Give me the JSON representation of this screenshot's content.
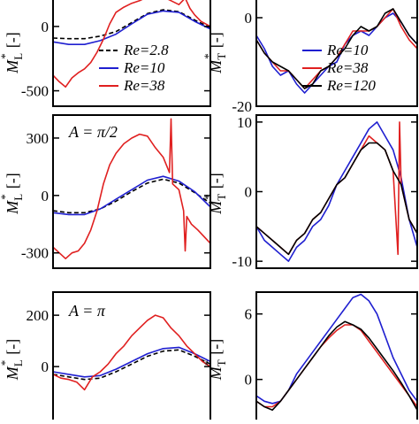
{
  "chart_data": [
    {
      "type": "line",
      "panel": "top-left",
      "annotation": "",
      "ylabel_main": "M",
      "ylabel_sub": "L",
      "ylabel_sup": "*",
      "ylabel_unit": "[-]",
      "ylim": [
        -620,
        240
      ],
      "yticks": [
        {
          "v": 0,
          "label": "0"
        },
        {
          "v": -500,
          "label": "-500"
        }
      ],
      "xlim": [
        0,
        1
      ],
      "legend": {
        "position": "bottom",
        "entries": [
          {
            "label": "Re=2.8",
            "series": "Re=2.8"
          },
          {
            "label": "Re=10",
            "series": "Re=10"
          },
          {
            "label": "Re=38",
            "series": "Re=38"
          }
        ]
      },
      "series": [
        {
          "name": "Re=2.8",
          "color": "#000000",
          "dashed": true,
          "x": [
            0,
            0.1,
            0.2,
            0.3,
            0.4,
            0.5,
            0.6,
            0.7,
            0.8,
            0.9,
            1
          ],
          "y": [
            -90,
            -95,
            -95,
            -75,
            -40,
            30,
            100,
            130,
            115,
            50,
            -10
          ]
        },
        {
          "name": "Re=10",
          "color": "#1f1fd0",
          "dashed": false,
          "x": [
            0,
            0.1,
            0.2,
            0.3,
            0.4,
            0.5,
            0.6,
            0.7,
            0.8,
            0.9,
            1
          ],
          "y": [
            -120,
            -140,
            -140,
            -110,
            -60,
            20,
            95,
            120,
            110,
            40,
            -20
          ]
        },
        {
          "name": "Re=38",
          "color": "#e02020",
          "dashed": false,
          "x": [
            0,
            0.04,
            0.08,
            0.12,
            0.16,
            0.2,
            0.24,
            0.28,
            0.32,
            0.36,
            0.4,
            0.45,
            0.5,
            0.55,
            0.6,
            0.65,
            0.7,
            0.75,
            0.8,
            0.84,
            0.87,
            0.9,
            0.94,
            1
          ],
          "y": [
            -380,
            -430,
            -470,
            -400,
            -360,
            -330,
            -280,
            -200,
            -100,
            20,
            110,
            150,
            180,
            200,
            230,
            215,
            230,
            200,
            170,
            220,
            140,
            90,
            40,
            0
          ]
        }
      ]
    },
    {
      "type": "line",
      "panel": "top-right",
      "annotation": "",
      "ylabel_main": "M",
      "ylabel_sub": "T",
      "ylabel_sup": "*",
      "ylabel_unit": "[-]",
      "ylim": [
        -20,
        5
      ],
      "yticks": [
        {
          "v": 0,
          "label": "0"
        },
        {
          "v": -20,
          "label": "-20"
        }
      ],
      "xlim": [
        0,
        1
      ],
      "legend": {
        "position": "bottom-right",
        "entries": [
          {
            "label": "Re=10",
            "series": "Re=10"
          },
          {
            "label": "Re=38",
            "series": "Re=38"
          },
          {
            "label": "Re=120",
            "series": "Re=120"
          }
        ]
      },
      "series": [
        {
          "name": "Re=10",
          "color": "#1f1fd0",
          "dashed": false,
          "x": [
            0,
            0.05,
            0.1,
            0.15,
            0.2,
            0.25,
            0.3,
            0.35,
            0.4,
            0.45,
            0.5,
            0.55,
            0.6,
            0.65,
            0.7,
            0.75,
            0.8,
            0.85,
            0.9,
            0.95,
            1
          ],
          "y": [
            -4,
            -7,
            -11,
            -13,
            -12,
            -15,
            -17,
            -15,
            -13,
            -11,
            -10,
            -6,
            -4,
            -3,
            -4,
            -2,
            0,
            1,
            -1,
            -4,
            -6
          ]
        },
        {
          "name": "Re=38",
          "color": "#e02020",
          "dashed": false,
          "x": [
            0,
            0.05,
            0.1,
            0.15,
            0.2,
            0.25,
            0.3,
            0.35,
            0.4,
            0.45,
            0.5,
            0.55,
            0.6,
            0.65,
            0.7,
            0.75,
            0.8,
            0.85,
            0.9,
            0.95,
            1
          ],
          "y": [
            -5,
            -8,
            -10,
            -12,
            -12,
            -14,
            -16,
            -14,
            -12,
            -11,
            -9,
            -6,
            -3,
            -3,
            -3,
            -2,
            0,
            2,
            -2,
            -5,
            -7
          ]
        },
        {
          "name": "Re=120",
          "color": "#000000",
          "dashed": false,
          "x": [
            0,
            0.05,
            0.1,
            0.15,
            0.2,
            0.25,
            0.3,
            0.35,
            0.4,
            0.45,
            0.5,
            0.55,
            0.6,
            0.65,
            0.7,
            0.75,
            0.8,
            0.85,
            0.9,
            0.95,
            1
          ],
          "y": [
            -5,
            -8,
            -10,
            -11,
            -12,
            -14,
            -16,
            -15,
            -12,
            -11,
            -9,
            -7,
            -4,
            -2,
            -3,
            -2,
            1,
            2,
            -1,
            -4,
            -6
          ]
        }
      ]
    },
    {
      "type": "line",
      "panel": "middle-left",
      "annotation": "A = π/2",
      "ylabel_main": "M",
      "ylabel_sub": "L",
      "ylabel_sup": "*",
      "ylabel_unit": "[-]",
      "ylim": [
        -380,
        420
      ],
      "yticks": [
        {
          "v": 300,
          "label": "300"
        },
        {
          "v": 0,
          "label": "0"
        },
        {
          "v": -300,
          "label": "-300"
        }
      ],
      "xlim": [
        0,
        1
      ],
      "legend": null,
      "series": [
        {
          "name": "Re=2.8",
          "color": "#000000",
          "dashed": true,
          "x": [
            0,
            0.1,
            0.2,
            0.3,
            0.4,
            0.5,
            0.6,
            0.7,
            0.8,
            0.9,
            1
          ],
          "y": [
            -80,
            -90,
            -90,
            -70,
            -30,
            20,
            65,
            85,
            65,
            15,
            -40
          ]
        },
        {
          "name": "Re=10",
          "color": "#1f1fd0",
          "dashed": false,
          "x": [
            0,
            0.1,
            0.2,
            0.3,
            0.4,
            0.5,
            0.6,
            0.7,
            0.8,
            0.9,
            1
          ],
          "y": [
            -90,
            -100,
            -100,
            -70,
            -20,
            30,
            80,
            100,
            75,
            20,
            -60
          ]
        },
        {
          "name": "Re=38",
          "color": "#e02020",
          "dashed": false,
          "x": [
            0,
            0.04,
            0.08,
            0.12,
            0.16,
            0.2,
            0.24,
            0.28,
            0.32,
            0.36,
            0.4,
            0.45,
            0.5,
            0.55,
            0.6,
            0.65,
            0.7,
            0.74,
            0.75,
            0.76,
            0.8,
            0.83,
            0.84,
            0.85,
            0.88,
            0.92,
            1
          ],
          "y": [
            -270,
            -300,
            -330,
            -300,
            -290,
            -250,
            -180,
            -80,
            60,
            160,
            220,
            270,
            300,
            320,
            310,
            250,
            200,
            120,
            400,
            60,
            30,
            -80,
            -290,
            -110,
            -150,
            -180,
            -250
          ]
        }
      ]
    },
    {
      "type": "line",
      "panel": "middle-right",
      "annotation": "",
      "ylabel_main": "M",
      "ylabel_sub": "T",
      "ylabel_sup": "*",
      "ylabel_unit": "[-]",
      "ylim": [
        -11,
        11
      ],
      "yticks": [
        {
          "v": 10,
          "label": "10"
        },
        {
          "v": 0,
          "label": "0"
        },
        {
          "v": -10,
          "label": "-10"
        }
      ],
      "xlim": [
        0,
        1
      ],
      "legend": null,
      "series": [
        {
          "name": "Re=10",
          "color": "#1f1fd0",
          "dashed": false,
          "x": [
            0,
            0.05,
            0.1,
            0.15,
            0.2,
            0.25,
            0.3,
            0.35,
            0.4,
            0.45,
            0.5,
            0.55,
            0.6,
            0.65,
            0.7,
            0.75,
            0.8,
            0.85,
            0.9,
            0.95,
            1
          ],
          "y": [
            -5,
            -7,
            -8,
            -9,
            -10,
            -8,
            -7,
            -5,
            -4,
            -2,
            1,
            3,
            5,
            7,
            9,
            10,
            8,
            6,
            2,
            -4,
            -8
          ]
        },
        {
          "name": "Re=38",
          "color": "#e02020",
          "dashed": false,
          "x": [
            0,
            0.05,
            0.1,
            0.15,
            0.2,
            0.25,
            0.3,
            0.35,
            0.4,
            0.45,
            0.5,
            0.55,
            0.6,
            0.65,
            0.7,
            0.75,
            0.8,
            0.85,
            0.88,
            0.89,
            0.9,
            0.95,
            1
          ],
          "y": [
            -5,
            -6,
            -7,
            -8,
            -9,
            -7,
            -6,
            -4,
            -3,
            -1,
            1,
            2,
            4,
            6,
            8,
            7,
            6,
            3,
            -9,
            10,
            1,
            -4,
            -6
          ]
        },
        {
          "name": "Re=120",
          "color": "#000000",
          "dashed": false,
          "x": [
            0,
            0.05,
            0.1,
            0.15,
            0.2,
            0.25,
            0.3,
            0.35,
            0.4,
            0.45,
            0.5,
            0.55,
            0.6,
            0.65,
            0.7,
            0.75,
            0.8,
            0.85,
            0.9,
            0.95,
            1
          ],
          "y": [
            -5,
            -6,
            -7,
            -8,
            -9,
            -7,
            -6,
            -4,
            -3,
            -1,
            1,
            2,
            4,
            6,
            7,
            7,
            6,
            3,
            1,
            -4,
            -6
          ]
        }
      ]
    },
    {
      "type": "line",
      "panel": "bottom-left",
      "annotation": "A = π",
      "ylabel_main": "M",
      "ylabel_sub": "L",
      "ylabel_sup": "*",
      "ylabel_unit": "[-]",
      "ylim": [
        -220,
        290
      ],
      "yticks": [
        {
          "v": 200,
          "label": "200"
        },
        {
          "v": 0,
          "label": "0"
        }
      ],
      "xlim": [
        0,
        1
      ],
      "legend": null,
      "series": [
        {
          "name": "Re=2.8",
          "color": "#000000",
          "dashed": true,
          "x": [
            0,
            0.1,
            0.2,
            0.3,
            0.4,
            0.5,
            0.6,
            0.7,
            0.8,
            0.9,
            1
          ],
          "y": [
            -30,
            -40,
            -50,
            -45,
            -20,
            10,
            40,
            60,
            65,
            40,
            10
          ]
        },
        {
          "name": "Re=10",
          "color": "#1f1fd0",
          "dashed": false,
          "x": [
            0,
            0.1,
            0.2,
            0.3,
            0.4,
            0.5,
            0.6,
            0.7,
            0.8,
            0.9,
            1
          ],
          "y": [
            -20,
            -30,
            -40,
            -35,
            -10,
            20,
            50,
            70,
            75,
            50,
            20
          ]
        },
        {
          "name": "Re=38",
          "color": "#e02020",
          "dashed": false,
          "x": [
            0,
            0.05,
            0.1,
            0.15,
            0.2,
            0.25,
            0.3,
            0.35,
            0.4,
            0.45,
            0.5,
            0.55,
            0.6,
            0.65,
            0.7,
            0.75,
            0.8,
            0.85,
            0.9,
            0.95,
            1
          ],
          "y": [
            -30,
            -45,
            -50,
            -60,
            -90,
            -40,
            -20,
            10,
            50,
            80,
            120,
            150,
            180,
            200,
            190,
            150,
            120,
            80,
            50,
            20,
            0
          ]
        }
      ]
    },
    {
      "type": "line",
      "panel": "bottom-right",
      "annotation": "",
      "ylabel_main": "M",
      "ylabel_sub": "T",
      "ylabel_sup": "*",
      "ylabel_unit": "[-]",
      "ylim": [
        -4,
        8
      ],
      "yticks": [
        {
          "v": 6,
          "label": "6"
        },
        {
          "v": 0,
          "label": "0"
        }
      ],
      "xlim": [
        0,
        1
      ],
      "legend": null,
      "series": [
        {
          "name": "Re=10",
          "color": "#1f1fd0",
          "dashed": false,
          "x": [
            0,
            0.05,
            0.1,
            0.15,
            0.2,
            0.25,
            0.3,
            0.35,
            0.4,
            0.45,
            0.5,
            0.55,
            0.6,
            0.65,
            0.7,
            0.75,
            0.8,
            0.85,
            0.9,
            0.95,
            1
          ],
          "y": [
            -1.5,
            -2,
            -2.2,
            -2,
            -1,
            0.5,
            1.5,
            2.5,
            3.5,
            4.5,
            5.5,
            6.5,
            7.5,
            7.8,
            7.2,
            6,
            4,
            2,
            0.5,
            -1,
            -2
          ]
        },
        {
          "name": "Re=38",
          "color": "#e02020",
          "dashed": false,
          "x": [
            0,
            0.05,
            0.1,
            0.15,
            0.2,
            0.25,
            0.3,
            0.35,
            0.4,
            0.45,
            0.5,
            0.55,
            0.6,
            0.65,
            0.7,
            0.75,
            0.8,
            0.85,
            0.9,
            0.95,
            1
          ],
          "y": [
            -2,
            -2.5,
            -2.5,
            -2,
            -1,
            0,
            1,
            2,
            3,
            3.8,
            4.5,
            5,
            5,
            4.5,
            3.5,
            2.5,
            1.5,
            0.5,
            -0.5,
            -1.5,
            -2.5
          ]
        },
        {
          "name": "Re=120",
          "color": "#000000",
          "dashed": false,
          "x": [
            0,
            0.05,
            0.1,
            0.15,
            0.2,
            0.25,
            0.3,
            0.35,
            0.4,
            0.45,
            0.5,
            0.55,
            0.6,
            0.65,
            0.7,
            0.75,
            0.8,
            0.85,
            0.9,
            0.95,
            1
          ],
          "y": [
            -2,
            -2.5,
            -2.8,
            -2,
            -1,
            0,
            1,
            2,
            3,
            4,
            4.8,
            5.3,
            5,
            4.6,
            3.8,
            2.8,
            1.8,
            0.8,
            -0.3,
            -1.5,
            -2.8
          ]
        }
      ]
    }
  ]
}
